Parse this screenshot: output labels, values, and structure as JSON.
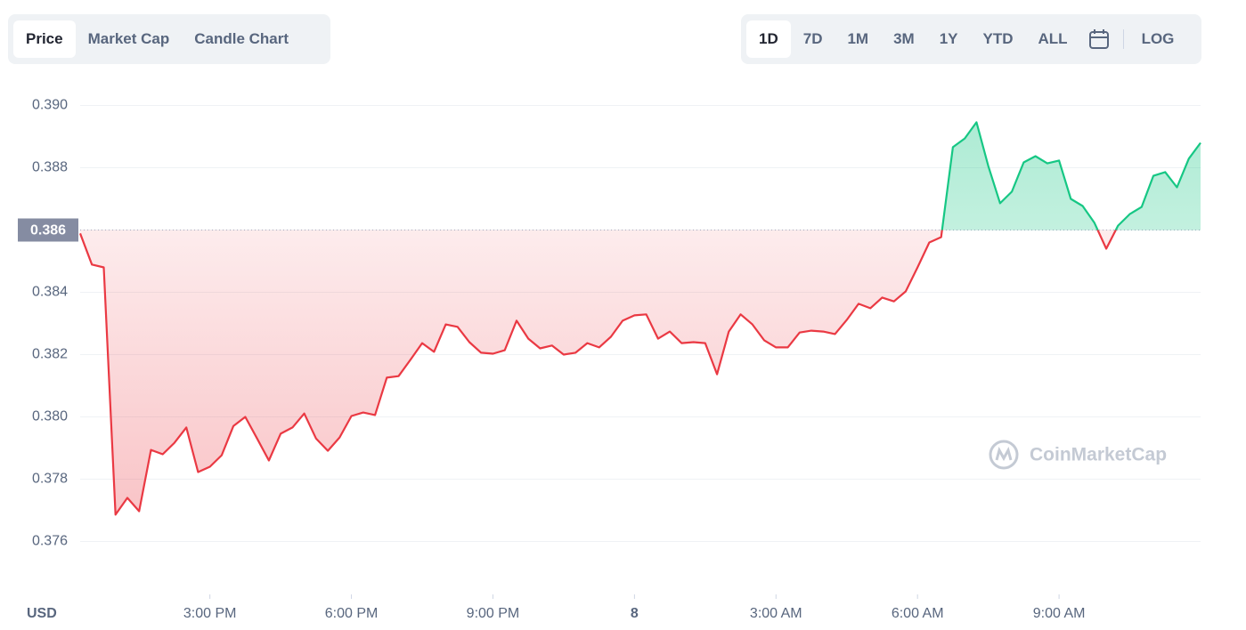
{
  "tabs": [
    "Price",
    "Market Cap",
    "Candle Chart"
  ],
  "active_tab": 0,
  "ranges": [
    "1D",
    "7D",
    "1M",
    "3M",
    "1Y",
    "YTD",
    "ALL"
  ],
  "active_range": 0,
  "log_button": "LOG",
  "watermark": "CoinMarketCap",
  "chart_data": {
    "type": "line",
    "y_unit": "USD",
    "baseline": 0.386,
    "color_up": "#16c784",
    "color_down": "#ea3943",
    "xlim": [
      12.25,
      36
    ],
    "xticks": [
      {
        "value": 15,
        "label": "3:00 PM"
      },
      {
        "value": 18,
        "label": "6:00 PM"
      },
      {
        "value": 21,
        "label": "9:00 PM"
      },
      {
        "value": 24,
        "label": "8"
      },
      {
        "value": 27,
        "label": "3:00 AM"
      },
      {
        "value": 30,
        "label": "6:00 AM"
      },
      {
        "value": 33,
        "label": "9:00 AM"
      }
    ],
    "ylim": [
      0.3743,
      0.3903
    ],
    "yticks": [
      0.376,
      0.378,
      {
        "value": 0.38,
        "label": "0.380"
      },
      0.382,
      0.384,
      0.386,
      0.388,
      {
        "value": 0.39,
        "label": "0.390"
      }
    ],
    "grid": true,
    "x": [
      12.25,
      12.5,
      12.75,
      13,
      13.25,
      13.5,
      13.75,
      14,
      14.25,
      14.5,
      14.75,
      15,
      15.25,
      15.5,
      15.75,
      16,
      16.25,
      16.5,
      16.75,
      17,
      17.25,
      17.5,
      17.75,
      18,
      18.25,
      18.5,
      18.75,
      19,
      19.25,
      19.5,
      19.75,
      20,
      20.25,
      20.5,
      20.75,
      21,
      21.25,
      21.5,
      21.75,
      22,
      22.25,
      22.5,
      22.75,
      23,
      23.25,
      23.5,
      23.75,
      24,
      24.25,
      24.5,
      24.75,
      25,
      25.25,
      25.5,
      25.75,
      26,
      26.25,
      26.5,
      26.75,
      27,
      27.25,
      27.5,
      27.75,
      28,
      28.25,
      28.5,
      28.75,
      29,
      29.25,
      29.5,
      29.75,
      30,
      30.25,
      30.5,
      30.75,
      31,
      31.25,
      31.5,
      31.75,
      32,
      32.25,
      32.5,
      32.75,
      33,
      33.25,
      33.5,
      33.75,
      34,
      34.25,
      34.5,
      34.75,
      35,
      35.25,
      35.5,
      35.75,
      36
    ],
    "values": [
      0.38589,
      0.38489,
      0.3848,
      0.37686,
      0.3774,
      0.37697,
      0.37894,
      0.3788,
      0.37917,
      0.37966,
      0.37823,
      0.3784,
      0.37877,
      0.37971,
      0.38,
      0.37931,
      0.3786,
      0.37946,
      0.37966,
      0.38011,
      0.37931,
      0.37891,
      0.37934,
      0.38003,
      0.38014,
      0.38006,
      0.38126,
      0.38131,
      0.38183,
      0.38237,
      0.38209,
      0.38297,
      0.38289,
      0.3824,
      0.38206,
      0.38203,
      0.38214,
      0.38309,
      0.38251,
      0.3822,
      0.38229,
      0.382,
      0.38206,
      0.38237,
      0.38223,
      0.38257,
      0.38309,
      0.38326,
      0.38329,
      0.38251,
      0.38274,
      0.38237,
      0.3824,
      0.38237,
      0.38137,
      0.38274,
      0.38329,
      0.38297,
      0.38246,
      0.38223,
      0.38223,
      0.38271,
      0.38277,
      0.38274,
      0.38266,
      0.38311,
      0.38363,
      0.38349,
      0.38383,
      0.38371,
      0.38403,
      0.3848,
      0.3856,
      0.38577,
      0.38866,
      0.38894,
      0.38946,
      0.38806,
      0.38686,
      0.38723,
      0.38817,
      0.38837,
      0.38814,
      0.38823,
      0.387,
      0.38677,
      0.38623,
      0.3854,
      0.38614,
      0.38651,
      0.38674,
      0.38774,
      0.38786,
      0.38737,
      0.38829,
      0.3888
    ]
  }
}
